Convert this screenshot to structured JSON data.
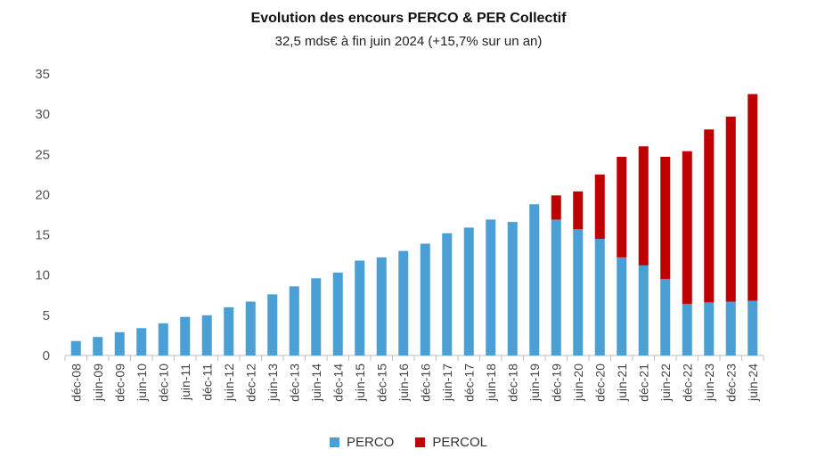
{
  "chart_data": {
    "type": "bar",
    "stacked": true,
    "title": "Evolution des encours PERCO & PER Collectif",
    "subtitle": "32,5 mds€ à fin juin 2024 (+15,7% sur un an)",
    "categories": [
      "déc-08",
      "juin-09",
      "déc-09",
      "juin-10",
      "déc-10",
      "juin-11",
      "déc-11",
      "juin-12",
      "déc-12",
      "juin-13",
      "déc-13",
      "juin-14",
      "déc-14",
      "juin-15",
      "déc-15",
      "juin-16",
      "déc-16",
      "juin-17",
      "déc-17",
      "juin-18",
      "déc-18",
      "juin-19",
      "déc-19",
      "juin-20",
      "déc-20",
      "juin-21",
      "déc-21",
      "juin-22",
      "déc-22",
      "juin-23",
      "déc-23",
      "juin-24"
    ],
    "series": [
      {
        "name": "PERCO",
        "color": "#4a9fd5",
        "values": [
          1.8,
          2.3,
          2.9,
          3.4,
          4.0,
          4.8,
          5.0,
          6.0,
          6.7,
          7.6,
          8.6,
          9.6,
          10.3,
          11.8,
          12.2,
          13.0,
          13.9,
          15.2,
          15.9,
          16.9,
          16.6,
          18.8,
          16.9,
          15.7,
          14.5,
          12.2,
          11.2,
          9.5,
          6.4,
          6.6,
          6.7,
          6.8
        ]
      },
      {
        "name": "PERCOL",
        "color": "#c00000",
        "values": [
          0,
          0,
          0,
          0,
          0,
          0,
          0,
          0,
          0,
          0,
          0,
          0,
          0,
          0,
          0,
          0,
          0,
          0,
          0,
          0,
          0,
          0,
          3.0,
          4.7,
          8.0,
          12.5,
          14.8,
          15.2,
          19.0,
          21.5,
          23.0,
          25.7
        ]
      }
    ],
    "ylim": [
      0,
      35
    ],
    "yticks": [
      0,
      5,
      10,
      15,
      20,
      25,
      30,
      35
    ],
    "grid": false,
    "legend_position": "bottom"
  }
}
